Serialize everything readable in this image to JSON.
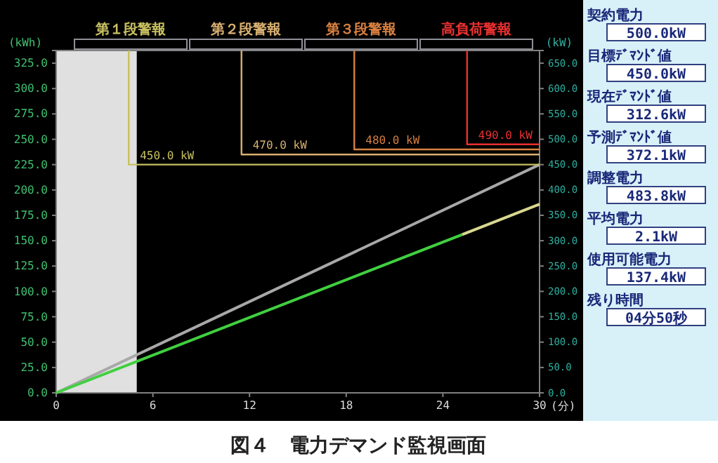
{
  "chart_data": [
    {
      "type": "line",
      "title": "図４　電力デマンド監視画面",
      "xlabel": "(分)",
      "ylabel": "(kWh)",
      "y2label": "(kW)",
      "xlim": [
        0,
        30
      ],
      "xticks": [
        0,
        6,
        12,
        18,
        24,
        30
      ],
      "ylim": [
        0,
        337.5
      ],
      "yticks": [
        {
          "value": 0,
          "label": "0.0"
        },
        {
          "value": 25,
          "label": "25.0"
        },
        {
          "value": 50,
          "label": "50.0"
        },
        {
          "value": 75,
          "label": "75.0"
        },
        {
          "value": 100,
          "label": "100.0"
        },
        {
          "value": 125,
          "label": "125.0"
        },
        {
          "value": 150,
          "label": "150.0"
        },
        {
          "value": 175,
          "label": "175.0"
        },
        {
          "value": 200,
          "label": "200.0"
        },
        {
          "value": 225,
          "label": "225.0"
        },
        {
          "value": 250,
          "label": "250.0"
        },
        {
          "value": 275,
          "label": "275.0"
        },
        {
          "value": 300,
          "label": "300.0"
        },
        {
          "value": 325,
          "label": "325.0"
        }
      ],
      "y2lim": [
        0,
        675
      ],
      "y2ticks": [
        {
          "value": 0,
          "label": "0.0"
        },
        {
          "value": 50,
          "label": "50.0"
        },
        {
          "value": 100,
          "label": "100.0"
        },
        {
          "value": 150,
          "label": "150.0"
        },
        {
          "value": 200,
          "label": "200.0"
        },
        {
          "value": 250,
          "label": "250.0"
        },
        {
          "value": 300,
          "label": "300.0"
        },
        {
          "value": 350,
          "label": "350.0"
        },
        {
          "value": 400,
          "label": "400.0"
        },
        {
          "value": 450,
          "label": "450.0"
        },
        {
          "value": 500,
          "label": "500.0"
        },
        {
          "value": 550,
          "label": "550.0"
        },
        {
          "value": 600,
          "label": "600.0"
        },
        {
          "value": 650,
          "label": "650.0"
        }
      ],
      "bands": [
        {
          "axis": "x",
          "from": 0,
          "to": 5,
          "color": "#e0e0e0"
        }
      ],
      "series": [
        {
          "color": "#a8a8a8",
          "x": [
            0,
            30
          ],
          "values": [
            0,
            225
          ]
        },
        {
          "color": "#40d040",
          "x": [
            0,
            25.2
          ],
          "values": [
            0,
            156
          ]
        },
        {
          "color": "#d8d890",
          "x": [
            25.2,
            30
          ],
          "values": [
            156,
            186
          ]
        },
        {
          "name": "第１段警報",
          "axis": "y2",
          "color": "#c8c060",
          "x": [
            4.5,
            4.5,
            30
          ],
          "values": [
            675,
            450,
            450
          ],
          "value_labels": [
            null,
            "450.0 kW",
            null
          ]
        },
        {
          "name": "第２段警報",
          "axis": "y2",
          "color": "#d8b070",
          "x": [
            11.5,
            11.5,
            30
          ],
          "values": [
            675,
            470,
            470
          ],
          "value_labels": [
            null,
            "470.0 kW",
            null
          ]
        },
        {
          "name": "第３段警報",
          "axis": "y2",
          "color": "#d88040",
          "x": [
            18.5,
            18.5,
            30
          ],
          "values": [
            675,
            480,
            480
          ],
          "value_labels": [
            null,
            "480.0 kW",
            null
          ]
        },
        {
          "name": "高負荷警報",
          "axis": "y2",
          "color": "#e83030",
          "x": [
            25.5,
            25.5,
            30
          ],
          "values": [
            675,
            490,
            490
          ],
          "value_labels": [
            null,
            "490.0 kW",
            null
          ]
        }
      ]
    },
    {
      "type": "other",
      "categories": [
        "契約電力",
        "目標ﾃﾞﾏﾝﾄﾞ値",
        "現在ﾃﾞﾏﾝﾄﾞ値",
        "予測ﾃﾞﾏﾝﾄﾞ値",
        "調整電力",
        "平均電力",
        "使用可能電力",
        "残り時間"
      ],
      "value_labels": [
        "500.0kW",
        "450.0kW",
        "312.6kW",
        "372.1kW",
        "483.8kW",
        "2.1kW",
        "137.4kW",
        "04分50秒"
      ]
    }
  ]
}
